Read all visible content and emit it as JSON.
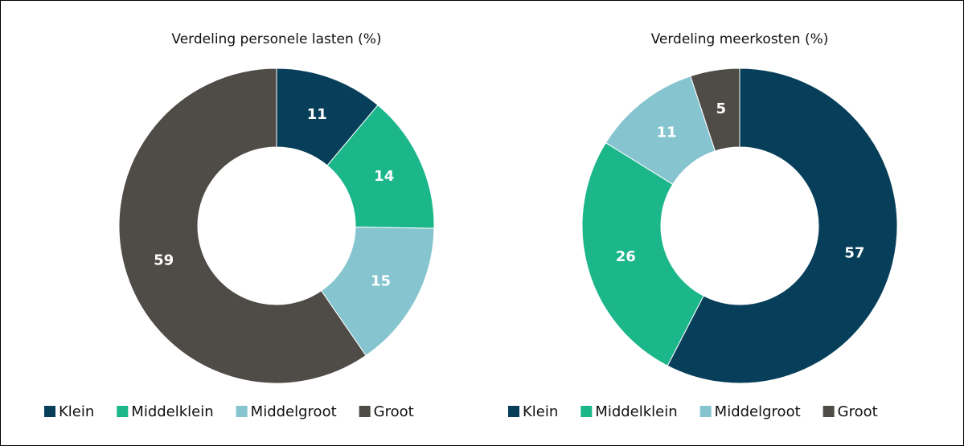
{
  "chart_data": [
    {
      "type": "donut",
      "title": "Verdeling personele lasten (%)",
      "categories": [
        "Klein",
        "Middelklein",
        "Middelgroot",
        "Groot"
      ],
      "values": [
        11,
        14,
        15,
        59
      ],
      "colors": [
        "#073f5a",
        "#1bb68a",
        "#86c5d0",
        "#4f4c47"
      ],
      "legend": "bottom"
    },
    {
      "type": "donut",
      "title": "Verdeling meerkosten (%)",
      "categories": [
        "Klein",
        "Middelklein",
        "Middelgroot",
        "Groot"
      ],
      "values": [
        57,
        26,
        11,
        5
      ],
      "colors": [
        "#073f5a",
        "#1bb68a",
        "#86c5d0",
        "#4f4c47"
      ],
      "legend": "bottom"
    }
  ]
}
